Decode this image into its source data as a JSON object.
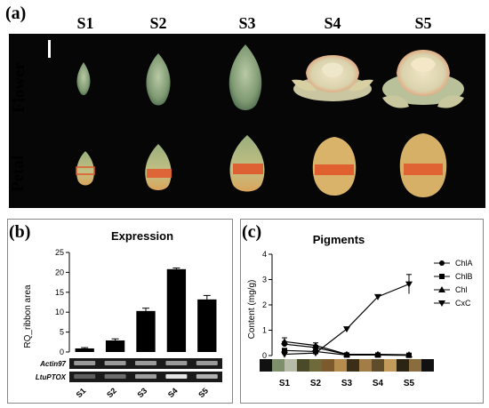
{
  "figure": {
    "panel_a": {
      "label": "(a)",
      "stages": [
        "S1",
        "S2",
        "S3",
        "S4",
        "S5"
      ],
      "row_labels": [
        "Flower",
        "Petal"
      ]
    },
    "panel_b": {
      "label": "(b)",
      "title": "Expression",
      "gel_labels": [
        "Actin97",
        "LtuPTOX"
      ]
    },
    "panel_c": {
      "label": "(c)",
      "title": "Pigments"
    }
  },
  "colors": {
    "photo_bg": "#060606",
    "petal_orange": "#e0562a",
    "bar": "#000000"
  },
  "chart_data": [
    {
      "type": "bar",
      "title": "Expression",
      "xlabel": "",
      "ylabel": "RQ_ribbon area",
      "categories": [
        "S1",
        "S2",
        "S3",
        "S4",
        "S5"
      ],
      "values": [
        0.9,
        2.9,
        10.3,
        20.8,
        13.2
      ],
      "errors": [
        0.2,
        0.4,
        0.7,
        0.3,
        1.0
      ],
      "ylim": [
        0,
        25
      ],
      "yticks": [
        0,
        5,
        10,
        15,
        20,
        25
      ],
      "grid": false
    },
    {
      "type": "line",
      "title": "Pigments",
      "xlabel": "",
      "ylabel": "Content (mg/g)",
      "categories": [
        "S1",
        "S2",
        "S3",
        "S4",
        "S5"
      ],
      "ylim": [
        0,
        4
      ],
      "yticks": [
        0,
        1,
        2,
        3,
        4
      ],
      "legend_position": "right",
      "series": [
        {
          "name": "ChlA",
          "marker": "circle",
          "values": [
            0.45,
            0.32,
            0.04,
            0.03,
            0.02
          ],
          "errors": [
            0.1,
            0.08,
            0.02,
            0.01,
            0.01
          ]
        },
        {
          "name": "ChlB",
          "marker": "square",
          "values": [
            0.2,
            0.16,
            0.02,
            0.02,
            0.01
          ],
          "errors": [
            0.05,
            0.04,
            0.01,
            0.01,
            0.01
          ]
        },
        {
          "name": "Chl",
          "marker": "triangle",
          "values": [
            0.55,
            0.4,
            0.05,
            0.05,
            0.03
          ],
          "errors": [
            0.15,
            0.1,
            0.02,
            0.02,
            0.01
          ]
        },
        {
          "name": "CxC",
          "marker": "triangle-down",
          "values": [
            0.05,
            0.1,
            1.05,
            2.32,
            2.82
          ],
          "errors": [
            0.02,
            0.05,
            0.05,
            0.05,
            0.38
          ]
        }
      ]
    }
  ]
}
